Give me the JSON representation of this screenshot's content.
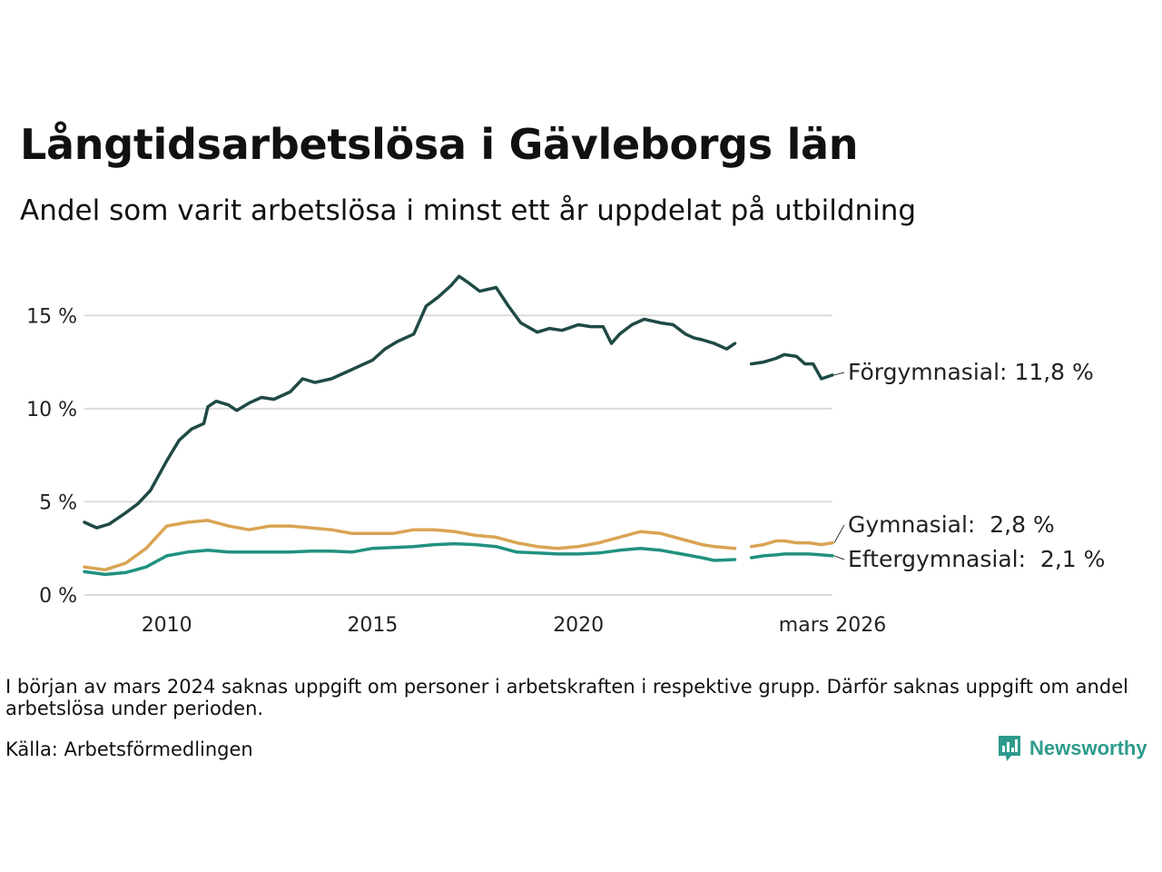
{
  "header": {
    "title": "Långtidsarbetslösa i Gävleborgs län",
    "subtitle": "Andel som varit arbetslösa i minst ett år uppdelat på utbildning"
  },
  "footer": {
    "note": "I början av mars 2024 saknas uppgift om personer i arbetskraften i respektive grupp. Därför saknas uppgift om andel arbetslösa under perioden.",
    "source": "Källa: Arbetsförmedlingen",
    "brand": "Newsworthy"
  },
  "chart_data": {
    "type": "line",
    "title": "Långtidsarbetslösa i Gävleborgs län",
    "subtitle": "Andel som varit arbetslösa i minst ett år uppdelat på utbildning",
    "xlabel": "",
    "ylabel": "",
    "xlim": [
      2008.0,
      2026.17
    ],
    "ylim": [
      0,
      17.5
    ],
    "grid": true,
    "legend": "direct labels at right end of lines",
    "y_ticks": [
      {
        "value": 0,
        "label": "0 %"
      },
      {
        "value": 5,
        "label": "5 %"
      },
      {
        "value": 10,
        "label": "10 %"
      },
      {
        "value": 15,
        "label": "15 %"
      }
    ],
    "x_ticks": [
      {
        "value": 2010,
        "label": "2010"
      },
      {
        "value": 2015,
        "label": "2015"
      },
      {
        "value": 2020,
        "label": "2020"
      },
      {
        "value": 2026.17,
        "label": "mars 2026"
      }
    ],
    "gap": [
      2023.8,
      2024.2
    ],
    "series": [
      {
        "name": "Förgymnasial",
        "label": "Förgymnasial: 11,8 %",
        "color": "#1f4a45",
        "x": [
          2008.0,
          2008.3,
          2008.6,
          2009.0,
          2009.3,
          2009.6,
          2010.0,
          2010.3,
          2010.6,
          2010.9,
          2011.0,
          2011.2,
          2011.5,
          2011.7,
          2012.0,
          2012.3,
          2012.6,
          2013.0,
          2013.3,
          2013.6,
          2014.0,
          2014.3,
          2014.6,
          2015.0,
          2015.3,
          2015.6,
          2016.0,
          2016.3,
          2016.6,
          2016.9,
          2017.1,
          2017.3,
          2017.6,
          2018.0,
          2018.3,
          2018.6,
          2019.0,
          2019.3,
          2019.6,
          2020.0,
          2020.3,
          2020.6,
          2020.8,
          2021.0,
          2021.3,
          2021.6,
          2022.0,
          2022.3,
          2022.6,
          2022.8,
          2023.0,
          2023.3,
          2023.6,
          2023.8,
          2024.2,
          2024.5,
          2024.8,
          2025.0,
          2025.3,
          2025.5,
          2025.7,
          2025.9,
          2026.17
        ],
        "values": [
          3.9,
          3.6,
          3.8,
          4.4,
          4.9,
          5.6,
          7.2,
          8.3,
          8.9,
          9.2,
          10.1,
          10.4,
          10.2,
          9.9,
          10.3,
          10.6,
          10.5,
          10.9,
          11.6,
          11.4,
          11.6,
          11.9,
          12.2,
          12.6,
          13.2,
          13.6,
          14.0,
          15.5,
          16.0,
          16.6,
          17.1,
          16.8,
          16.3,
          16.5,
          15.5,
          14.6,
          14.1,
          14.3,
          14.2,
          14.5,
          14.4,
          14.4,
          13.5,
          14.0,
          14.5,
          14.8,
          14.6,
          14.5,
          14.0,
          13.8,
          13.7,
          13.5,
          13.2,
          13.5,
          12.4,
          12.5,
          12.7,
          12.9,
          12.8,
          12.4,
          12.4,
          11.6,
          11.8
        ]
      },
      {
        "name": "Gymnasial",
        "label": "Gymnasial:  2,8 %",
        "color": "#d9a453",
        "x": [
          2008.0,
          2008.5,
          2009.0,
          2009.5,
          2010.0,
          2010.5,
          2011.0,
          2011.5,
          2012.0,
          2012.5,
          2013.0,
          2013.5,
          2014.0,
          2014.5,
          2015.0,
          2015.5,
          2016.0,
          2016.5,
          2017.0,
          2017.5,
          2018.0,
          2018.5,
          2019.0,
          2019.5,
          2020.0,
          2020.5,
          2021.0,
          2021.5,
          2022.0,
          2022.5,
          2023.0,
          2023.3,
          2023.8,
          2024.2,
          2024.5,
          2024.8,
          2025.0,
          2025.3,
          2025.6,
          2025.9,
          2026.17
        ],
        "values": [
          1.5,
          1.35,
          1.7,
          2.5,
          3.7,
          3.9,
          4.0,
          3.7,
          3.5,
          3.7,
          3.7,
          3.6,
          3.5,
          3.3,
          3.3,
          3.3,
          3.5,
          3.5,
          3.4,
          3.2,
          3.1,
          2.8,
          2.6,
          2.5,
          2.6,
          2.8,
          3.1,
          3.4,
          3.3,
          3.0,
          2.7,
          2.6,
          2.5,
          2.6,
          2.7,
          2.9,
          2.9,
          2.8,
          2.8,
          2.7,
          2.8
        ]
      },
      {
        "name": "Eftergymnasial",
        "label": "Eftergymnasial:  2,1 %",
        "color": "#21917f",
        "x": [
          2008.0,
          2008.5,
          2009.0,
          2009.5,
          2010.0,
          2010.5,
          2011.0,
          2011.5,
          2012.0,
          2012.5,
          2013.0,
          2013.5,
          2014.0,
          2014.5,
          2015.0,
          2015.5,
          2016.0,
          2016.5,
          2017.0,
          2017.5,
          2018.0,
          2018.5,
          2019.0,
          2019.5,
          2020.0,
          2020.5,
          2021.0,
          2021.5,
          2022.0,
          2022.5,
          2023.0,
          2023.3,
          2023.8,
          2024.2,
          2024.5,
          2024.8,
          2025.0,
          2025.3,
          2025.6,
          2025.9,
          2026.17
        ],
        "values": [
          1.25,
          1.1,
          1.2,
          1.5,
          2.1,
          2.3,
          2.4,
          2.3,
          2.3,
          2.3,
          2.3,
          2.35,
          2.35,
          2.3,
          2.5,
          2.55,
          2.6,
          2.7,
          2.75,
          2.7,
          2.6,
          2.3,
          2.25,
          2.2,
          2.2,
          2.25,
          2.4,
          2.5,
          2.4,
          2.2,
          2.0,
          1.85,
          1.9,
          2.0,
          2.1,
          2.15,
          2.2,
          2.2,
          2.2,
          2.15,
          2.1
        ]
      }
    ]
  }
}
